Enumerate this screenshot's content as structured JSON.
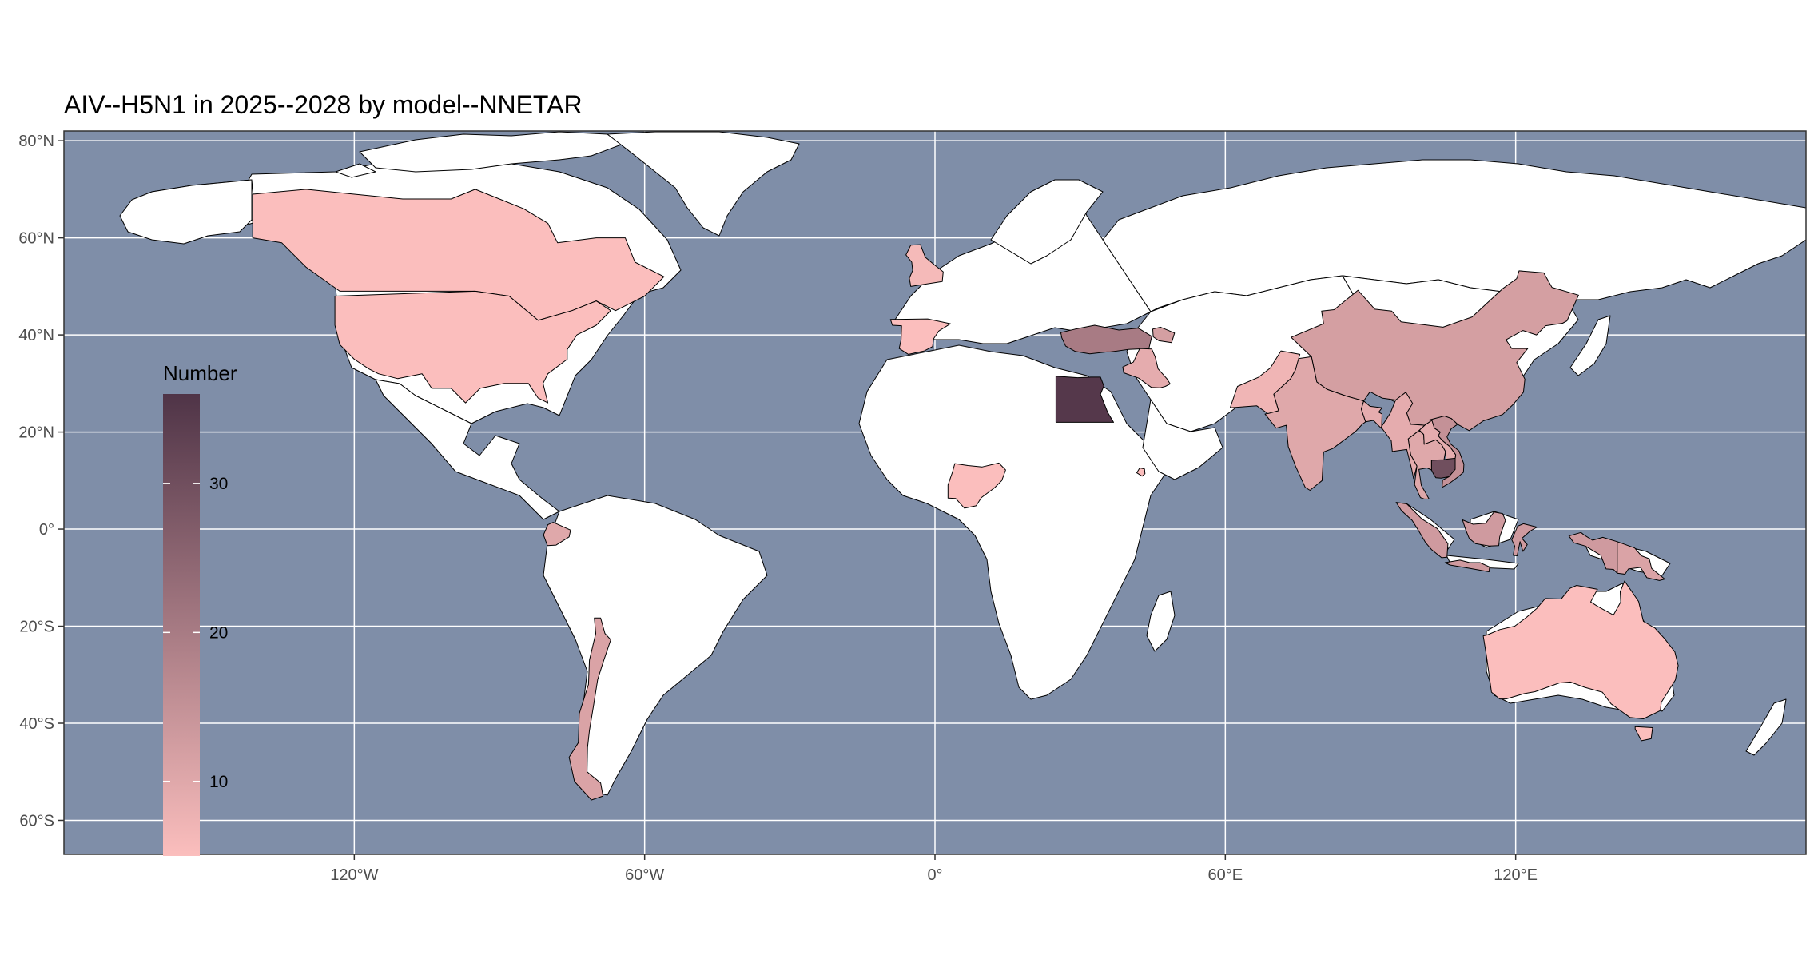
{
  "title": "AIV--H5N1 in 2025--2028 by model--NNETAR",
  "colors": {
    "ocean": "#7f8ea8",
    "grid": "#ffffff",
    "no_data": "#ffffff",
    "scale_low": "#fbbebd",
    "scale_high": "#4f3447",
    "border": "#000000"
  },
  "x_axis": {
    "ticks": [
      {
        "lon": -120,
        "label": "120°W"
      },
      {
        "lon": -60,
        "label": "60°W"
      },
      {
        "lon": 0,
        "label": "0°"
      },
      {
        "lon": 60,
        "label": "60°E"
      },
      {
        "lon": 120,
        "label": "120°E"
      }
    ]
  },
  "y_axis": {
    "ticks": [
      {
        "lat": 80,
        "label": "80°N"
      },
      {
        "lat": 60,
        "label": "60°N"
      },
      {
        "lat": 40,
        "label": "40°N"
      },
      {
        "lat": 20,
        "label": "20°N"
      },
      {
        "lat": 0,
        "label": "0°"
      },
      {
        "lat": -20,
        "label": "20°S"
      },
      {
        "lat": -40,
        "label": "40°S"
      },
      {
        "lat": -60,
        "label": "60°S"
      }
    ]
  },
  "legend": {
    "title": "Number",
    "min": 5,
    "max": 36,
    "breaks": [
      {
        "value": 30,
        "label": "30"
      },
      {
        "value": 20,
        "label": "20"
      },
      {
        "value": 10,
        "label": "10"
      }
    ]
  },
  "chart_data": {
    "type": "choropleth",
    "projection": "equirectangular",
    "lon_range": [
      -180,
      180
    ],
    "lat_range": [
      -67,
      82
    ],
    "fill_variable": "Number",
    "regions_with_values": [
      {
        "region": "Egypt",
        "value": 35
      },
      {
        "region": "Cambodia",
        "value": 30
      },
      {
        "region": "Turkey",
        "value": 20
      },
      {
        "region": "China",
        "value": 12
      },
      {
        "region": "Vietnam",
        "value": 15
      },
      {
        "region": "Indonesia",
        "value": 13
      },
      {
        "region": "India",
        "value": 10
      },
      {
        "region": "Bangladesh",
        "value": 9
      },
      {
        "region": "Iraq",
        "value": 9
      },
      {
        "region": "Azerbaijan",
        "value": 12
      },
      {
        "region": "Papua New Guinea",
        "value": 11
      },
      {
        "region": "Chile",
        "value": 11
      },
      {
        "region": "Ecuador",
        "value": 10
      },
      {
        "region": "Thailand",
        "value": 10
      },
      {
        "region": "Laos",
        "value": 9
      },
      {
        "region": "Myanmar",
        "value": 9
      },
      {
        "region": "Pakistan",
        "value": 7
      },
      {
        "region": "Canada",
        "value": 5
      },
      {
        "region": "United States",
        "value": 5
      },
      {
        "region": "United Kingdom",
        "value": 6
      },
      {
        "region": "Spain",
        "value": 5
      },
      {
        "region": "Nigeria",
        "value": 5
      },
      {
        "region": "Australia",
        "value": 5
      },
      {
        "region": "Djibouti",
        "value": 5
      }
    ],
    "no_data_fill": "white"
  }
}
